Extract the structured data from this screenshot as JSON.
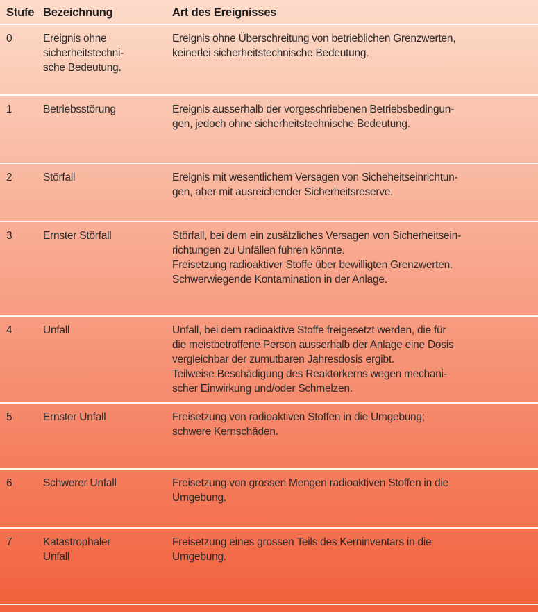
{
  "colors": {
    "gradient_top": "#fcdbc9",
    "gradient_bottom": "#f2603c",
    "separator": "#ffffff",
    "text": "#2d2d2d"
  },
  "table": {
    "headers": {
      "stufe": "Stufe",
      "bezeichnung": "Bezeichnung",
      "art": "Art des Ereignisses"
    },
    "rows": [
      {
        "stufe": "0",
        "bezeichnung": "Ereignis ohne\nsicherheitstechni-\nsche Bedeutung.",
        "art": "Ereignis ohne Überschreitung von betrieblichen Grenzwerten,\nkeinerlei sicherheitstechnische Bedeutung."
      },
      {
        "stufe": "1",
        "bezeichnung": "Betriebsstörung",
        "art": "Ereignis ausserhalb der vorgeschriebenen Betriebsbedingun-\ngen, jedoch ohne sicherheitstechnische Bedeutung."
      },
      {
        "stufe": "2",
        "bezeichnung": "Störfall",
        "art": "Ereignis mit wesentlichem Versagen von Sicheheitseinrichtun-\ngen, aber mit ausreichender Sicherheitsreserve."
      },
      {
        "stufe": "3",
        "bezeichnung": "Ernster Störfall",
        "art": "Störfall, bei dem ein zusätzliches Versagen von Sicherheitsein-\nrichtungen zu Unfällen führen könnte.\nFreisetzung radioaktiver Stoffe über bewilligten Grenzwerten.\nSchwerwiegende Kontamination in der Anlage."
      },
      {
        "stufe": "4",
        "bezeichnung": "Unfall",
        "art": "Unfall, bei dem radioaktive Stoffe freigesetzt werden, die für\ndie meistbetroffene Person ausserhalb der Anlage eine Dosis\nvergleichbar der zumutbaren Jahresdosis ergibt.\nTeilweise Beschädigung des Reaktorkerns wegen mechani-\nscher Einwirkung und/oder Schmelzen."
      },
      {
        "stufe": "5",
        "bezeichnung": "Ernster Unfall",
        "art": "Freisetzung von radioaktiven Stoffen in die Umgebung;\nschwere Kernschäden."
      },
      {
        "stufe": "6",
        "bezeichnung": "Schwerer Unfall",
        "art": "Freisetzung von grossen Mengen radioaktiven Stoffen in die\nUmgebung."
      },
      {
        "stufe": "7",
        "bezeichnung": "Katastrophaler\nUnfall",
        "art": "Freisetzung eines grossen Teils des Kerninventars in die\nUmgebung."
      }
    ]
  }
}
